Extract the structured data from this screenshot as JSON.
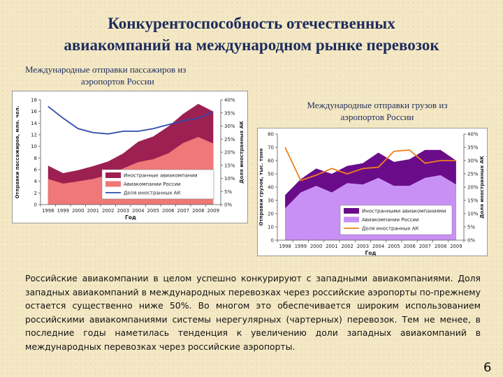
{
  "title_lines": [
    "Конкурентоспособность отечественных",
    "авиакомпаний на международном рынке перевозок"
  ],
  "subhead_left": [
    "Международные отправки пассажиров из",
    "аэропортов России"
  ],
  "subhead_right": [
    "Международные отправки грузов из",
    "аэропортов России"
  ],
  "body_text": "Российские авиакомпании в целом успешно конкурируют с западными авиакомпаниями. Доля западных авиакомпаний в международных перевозках через российские аэропорты по-прежнему остается существенно ниже 50%. Во многом это обеспечивается широким использованием российскими авиакомпаниями системы нерегулярных (чартерных) перевозок. Тем не менее, в последние годы наметилась тенденция к увеличению доли западных авиакомпаний в международных перевозках через российские аэропорты.",
  "page_number": "6",
  "colors": {
    "foreign_pass": "#9c2051",
    "russian_pass": "#f07878",
    "share_pass": "#2e4ca8",
    "foreign_cargo": "#6a0c8a",
    "russian_cargo": "#c890f4",
    "share_cargo": "#f08020",
    "title": "#1e2c5c"
  },
  "chart_data": [
    {
      "type": "area",
      "xlabel": "Год",
      "ylabel": "Отправки пассажиров, млн. чел.",
      "y2label": "Доля иностранных АК",
      "x": [
        "1998",
        "1999",
        "2000",
        "2001",
        "2002",
        "2003",
        "2004",
        "2005",
        "2006",
        "2007",
        "2008",
        "2009"
      ],
      "ylim": [
        0,
        18
      ],
      "yticks": [
        "0",
        "2",
        "4",
        "6",
        "8",
        "10",
        "12",
        "14",
        "16",
        "18"
      ],
      "y2lim": [
        0,
        40
      ],
      "y2ticks": [
        "0%",
        "5%",
        "10%",
        "15%",
        "20%",
        "25%",
        "30%",
        "35%",
        "40%"
      ],
      "series": [
        {
          "name": "Иностранные авиакомпании",
          "values": [
            6.7,
            5.4,
            5.9,
            6.6,
            7.4,
            8.8,
            10.8,
            11.7,
            13.4,
            15.6,
            17.3,
            16.0
          ]
        },
        {
          "name": "Авиакомпании России",
          "values": [
            4.4,
            3.6,
            4.0,
            4.4,
            5.1,
            6.2,
            7.3,
            7.8,
            8.8,
            10.6,
            11.6,
            10.5
          ]
        },
        {
          "name": "Доля иностранных АК",
          "axis": "right",
          "values": [
            37.5,
            33.0,
            29.0,
            27.5,
            27.0,
            28.0,
            28.0,
            29.0,
            30.5,
            32.0,
            33.0,
            35.5
          ]
        }
      ],
      "legend": "bottom-center",
      "grid": false
    },
    {
      "type": "area",
      "xlabel": "Год",
      "ylabel": "Отправки грузов, тыс. тонн",
      "y2label": "Доля иностранных АК",
      "x": [
        "1998",
        "1999",
        "2000",
        "2001",
        "2002",
        "2003",
        "2004",
        "2005",
        "2006",
        "2007",
        "2008",
        "2009"
      ],
      "ylim": [
        0,
        80
      ],
      "yticks": [
        "0",
        "10",
        "20",
        "30",
        "40",
        "50",
        "60",
        "70",
        "80"
      ],
      "y2lim": [
        0,
        40
      ],
      "y2ticks": [
        "0%",
        "5%",
        "10%",
        "15%",
        "20%",
        "25%",
        "30%",
        "35%",
        "40%"
      ],
      "series": [
        {
          "name": "Иностранными авиакомпаниями",
          "values": [
            34,
            46,
            54,
            50,
            56,
            58,
            66,
            59,
            61,
            68,
            68,
            60
          ]
        },
        {
          "name": "Авиакомпании России",
          "values": [
            24,
            36,
            41,
            36,
            43,
            42,
            47,
            41,
            41,
            47,
            49,
            42
          ]
        },
        {
          "name": "Доля иностранных АК",
          "axis": "right",
          "values": [
            35,
            22.5,
            24.5,
            27,
            25,
            27,
            27.5,
            33.5,
            34,
            29,
            30,
            30
          ]
        }
      ],
      "legend": "bottom-center",
      "grid": false
    }
  ]
}
